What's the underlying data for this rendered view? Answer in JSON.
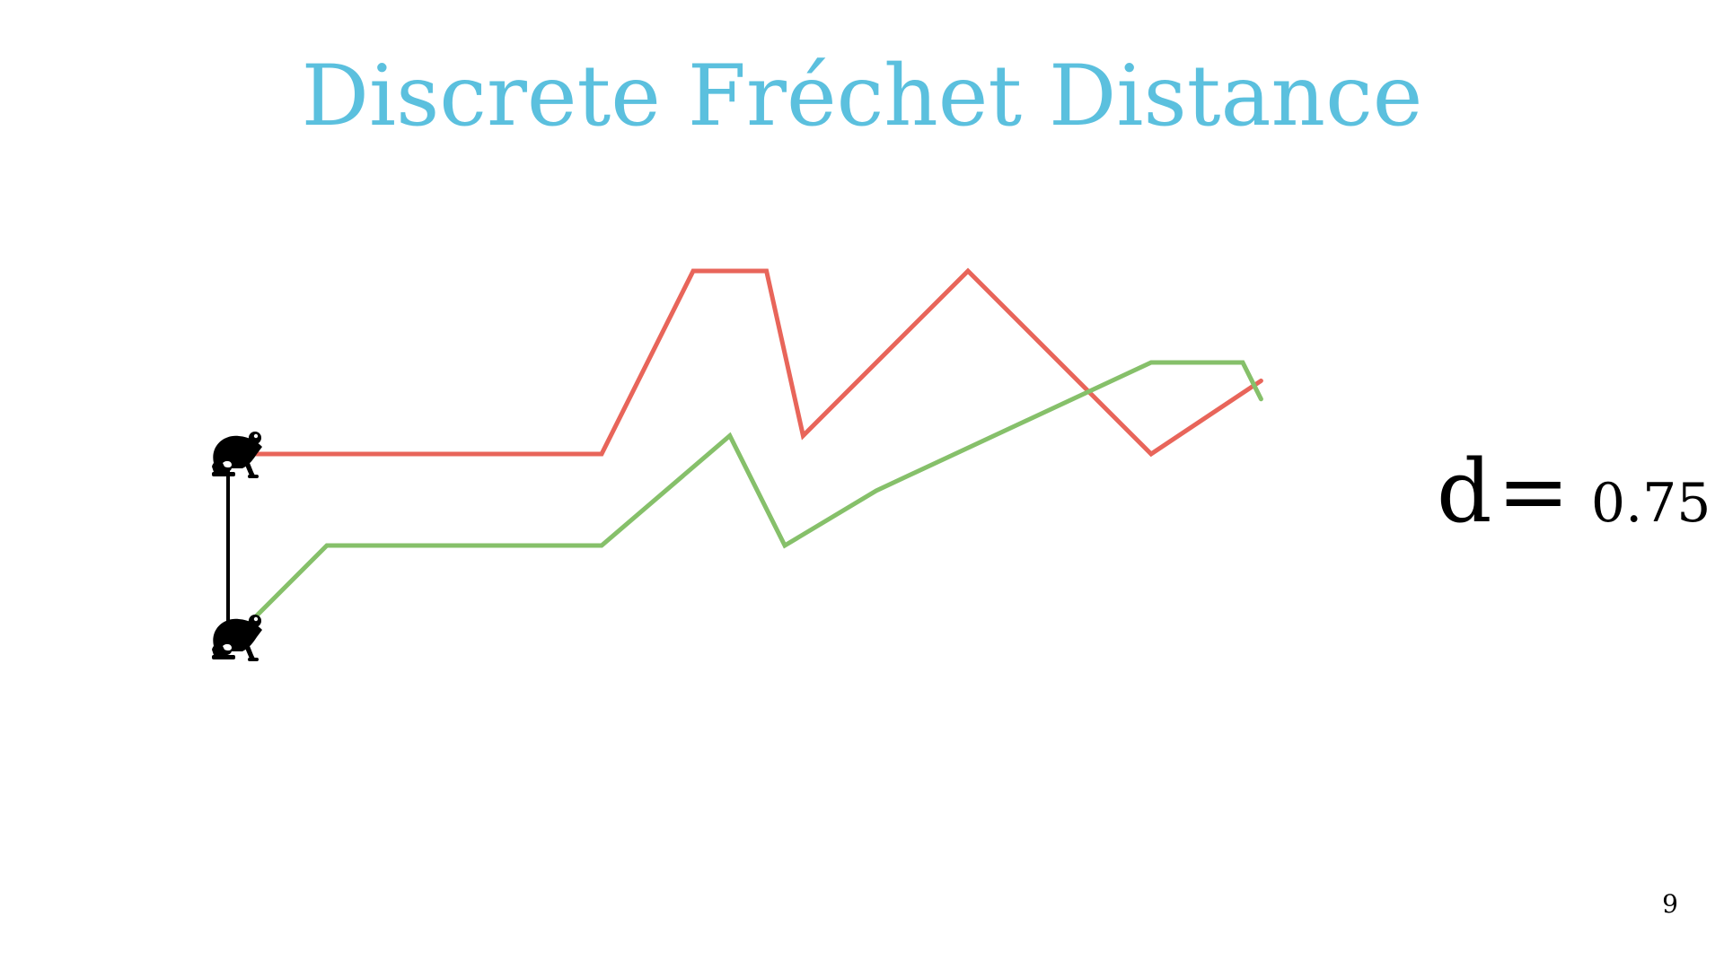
{
  "slide": {
    "title": "Discrete Fréchet Distance",
    "page_number": "9"
  },
  "distance": {
    "label": "d",
    "equals": "=",
    "value": "0.75"
  },
  "icons": {
    "walker": "frog-icon"
  },
  "colors": {
    "title": "#5bc0de",
    "curve_a": "#e8655a",
    "curve_b": "#86c06a",
    "leash": "#000000",
    "frog": "#000000"
  },
  "curves": {
    "curve_a": {
      "points": [
        [
          0,
          10
        ],
        [
          20,
          10
        ],
        [
          25,
          20
        ],
        [
          29,
          20
        ],
        [
          31,
          11
        ],
        [
          40,
          20
        ],
        [
          45,
          15
        ],
        [
          50,
          10
        ],
        [
          56,
          14
        ]
      ]
    },
    "curve_b": {
      "points": [
        [
          0,
          0
        ],
        [
          5,
          5
        ],
        [
          20,
          5
        ],
        [
          27,
          11
        ],
        [
          30,
          5
        ],
        [
          35,
          8
        ],
        [
          50,
          15
        ],
        [
          55,
          15
        ],
        [
          56,
          13
        ]
      ]
    }
  },
  "walkers": {
    "frog_a": {
      "curve": "curve_a",
      "point_index": 0
    },
    "frog_b": {
      "curve": "curve_b",
      "point_index": 0
    }
  }
}
